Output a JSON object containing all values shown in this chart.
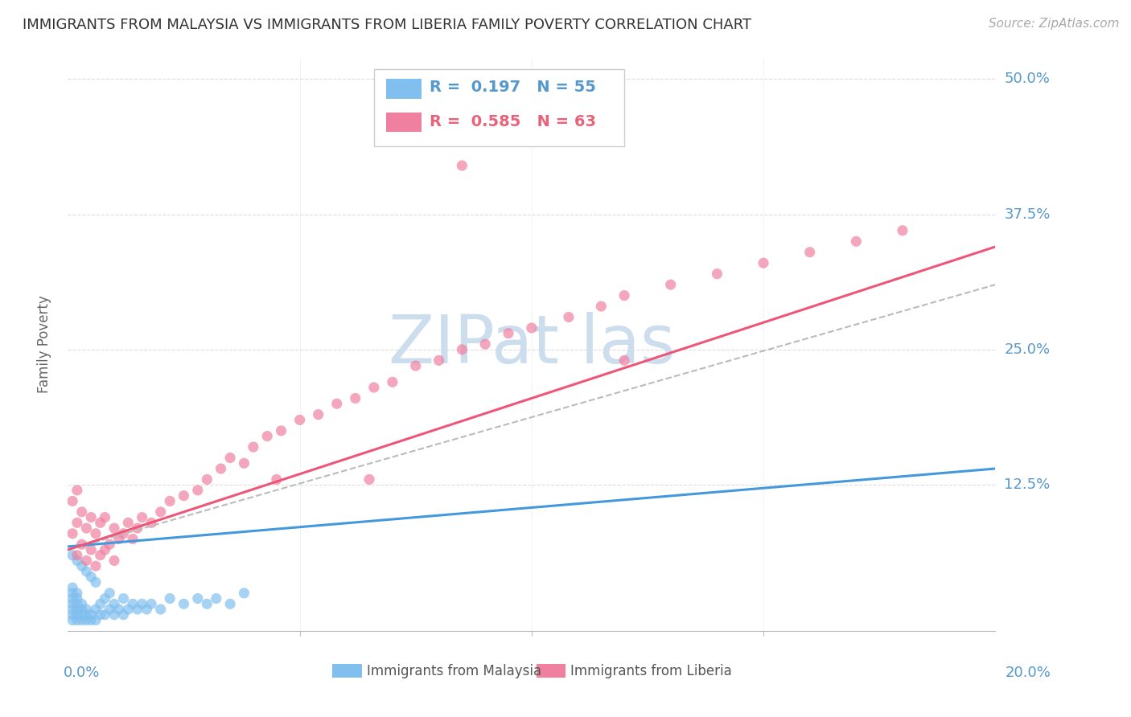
{
  "title": "IMMIGRANTS FROM MALAYSIA VS IMMIGRANTS FROM LIBERIA FAMILY POVERTY CORRELATION CHART",
  "source": "Source: ZipAtlas.com",
  "ylabel": "Family Poverty",
  "xlim": [
    0.0,
    0.2
  ],
  "ylim": [
    -0.01,
    0.52
  ],
  "R_malaysia": 0.197,
  "N_malaysia": 55,
  "R_liberia": 0.585,
  "N_liberia": 63,
  "malaysia_color": "#80bfee",
  "liberia_color": "#f080a0",
  "malaysia_line_color": "#4499dd",
  "liberia_line_color": "#ee5577",
  "dashed_line_color": "#bbbbbb",
  "watermark_color": "#ccdded",
  "background_color": "#ffffff",
  "grid_color": "#dddddd",
  "axis_label_color": "#5599cc",
  "title_color": "#333333",
  "legend_label_color_malaysia": "#5599cc",
  "legend_label_color_liberia": "#e8637a",
  "malaysia_scatter_x": [
    0.001,
    0.001,
    0.001,
    0.001,
    0.001,
    0.001,
    0.001,
    0.001,
    0.002,
    0.002,
    0.002,
    0.002,
    0.002,
    0.002,
    0.002,
    0.003,
    0.003,
    0.003,
    0.003,
    0.003,
    0.004,
    0.004,
    0.004,
    0.004,
    0.005,
    0.005,
    0.005,
    0.006,
    0.006,
    0.006,
    0.007,
    0.007,
    0.008,
    0.008,
    0.009,
    0.009,
    0.01,
    0.01,
    0.011,
    0.012,
    0.012,
    0.013,
    0.014,
    0.015,
    0.016,
    0.017,
    0.018,
    0.02,
    0.022,
    0.025,
    0.028,
    0.03,
    0.032,
    0.035,
    0.038
  ],
  "malaysia_scatter_y": [
    0.0,
    0.005,
    0.01,
    0.015,
    0.02,
    0.025,
    0.03,
    0.06,
    0.0,
    0.005,
    0.01,
    0.015,
    0.02,
    0.025,
    0.055,
    0.0,
    0.005,
    0.01,
    0.015,
    0.05,
    0.0,
    0.005,
    0.01,
    0.045,
    0.0,
    0.005,
    0.04,
    0.0,
    0.01,
    0.035,
    0.005,
    0.015,
    0.005,
    0.02,
    0.01,
    0.025,
    0.005,
    0.015,
    0.01,
    0.005,
    0.02,
    0.01,
    0.015,
    0.01,
    0.015,
    0.01,
    0.015,
    0.01,
    0.02,
    0.015,
    0.02,
    0.015,
    0.02,
    0.015,
    0.025
  ],
  "liberia_scatter_x": [
    0.001,
    0.001,
    0.002,
    0.002,
    0.002,
    0.003,
    0.003,
    0.004,
    0.004,
    0.005,
    0.005,
    0.006,
    0.006,
    0.007,
    0.007,
    0.008,
    0.008,
    0.009,
    0.01,
    0.01,
    0.011,
    0.012,
    0.013,
    0.014,
    0.015,
    0.016,
    0.018,
    0.02,
    0.022,
    0.025,
    0.028,
    0.03,
    0.033,
    0.035,
    0.038,
    0.04,
    0.043,
    0.046,
    0.05,
    0.054,
    0.058,
    0.062,
    0.066,
    0.07,
    0.075,
    0.08,
    0.085,
    0.09,
    0.095,
    0.1,
    0.108,
    0.115,
    0.12,
    0.13,
    0.14,
    0.15,
    0.16,
    0.17,
    0.18,
    0.12,
    0.085,
    0.065,
    0.045
  ],
  "liberia_scatter_y": [
    0.08,
    0.11,
    0.06,
    0.09,
    0.12,
    0.07,
    0.1,
    0.055,
    0.085,
    0.065,
    0.095,
    0.05,
    0.08,
    0.06,
    0.09,
    0.065,
    0.095,
    0.07,
    0.055,
    0.085,
    0.075,
    0.08,
    0.09,
    0.075,
    0.085,
    0.095,
    0.09,
    0.1,
    0.11,
    0.115,
    0.12,
    0.13,
    0.14,
    0.15,
    0.145,
    0.16,
    0.17,
    0.175,
    0.185,
    0.19,
    0.2,
    0.205,
    0.215,
    0.22,
    0.235,
    0.24,
    0.25,
    0.255,
    0.265,
    0.27,
    0.28,
    0.29,
    0.3,
    0.31,
    0.32,
    0.33,
    0.34,
    0.35,
    0.36,
    0.24,
    0.42,
    0.13,
    0.13
  ]
}
